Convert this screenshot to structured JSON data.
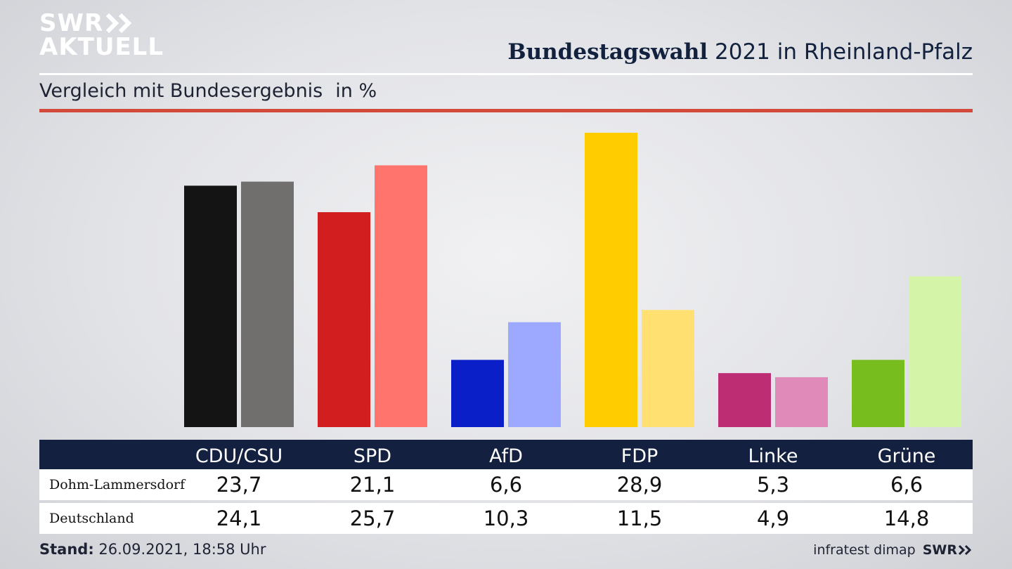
{
  "header": {
    "logo_line1": "SWR",
    "logo_line2": "AKTUELL",
    "title_bold": "Bundestagswahl",
    "title_rest": " 2021 in Rheinland-Pfalz",
    "subtitle": "Vergleich mit Bundesergebnis",
    "unit": "in %"
  },
  "footer": {
    "stand_label": "Stand:",
    "stand_value": " 26.09.2021, 18:58 Uhr",
    "source": "infratest dimap",
    "brand": "SWR"
  },
  "chart_data": {
    "type": "bar",
    "title": "Bundestagswahl 2021 in Rheinland-Pfalz",
    "subtitle": "Vergleich mit Bundesergebnis",
    "unit": "in %",
    "ylim": [
      0,
      30
    ],
    "grid": false,
    "categories": [
      "CDU/CSU",
      "SPD",
      "AfD",
      "FDP",
      "Linke",
      "Grüne"
    ],
    "series": [
      {
        "name": "Dohm-Lammersdorf",
        "values": [
          23.7,
          21.1,
          6.6,
          28.9,
          5.3,
          6.6
        ],
        "labels": [
          "23,7",
          "21,1",
          "6,6",
          "28,9",
          "5,3",
          "6,6"
        ],
        "colors": [
          "#141414",
          "#d21e1e",
          "#0a1fc8",
          "#ffcc00",
          "#bd2d74",
          "#78bd1e"
        ]
      },
      {
        "name": "Deutschland",
        "values": [
          24.1,
          25.7,
          10.3,
          11.5,
          4.9,
          14.8
        ],
        "labels": [
          "24,1",
          "25,7",
          "10,3",
          "11,5",
          "4,9",
          "14,8"
        ],
        "colors": [
          "#716f6d",
          "#ff746c",
          "#9ca9ff",
          "#ffe070",
          "#e08ab9",
          "#d4f5a8"
        ]
      }
    ]
  }
}
